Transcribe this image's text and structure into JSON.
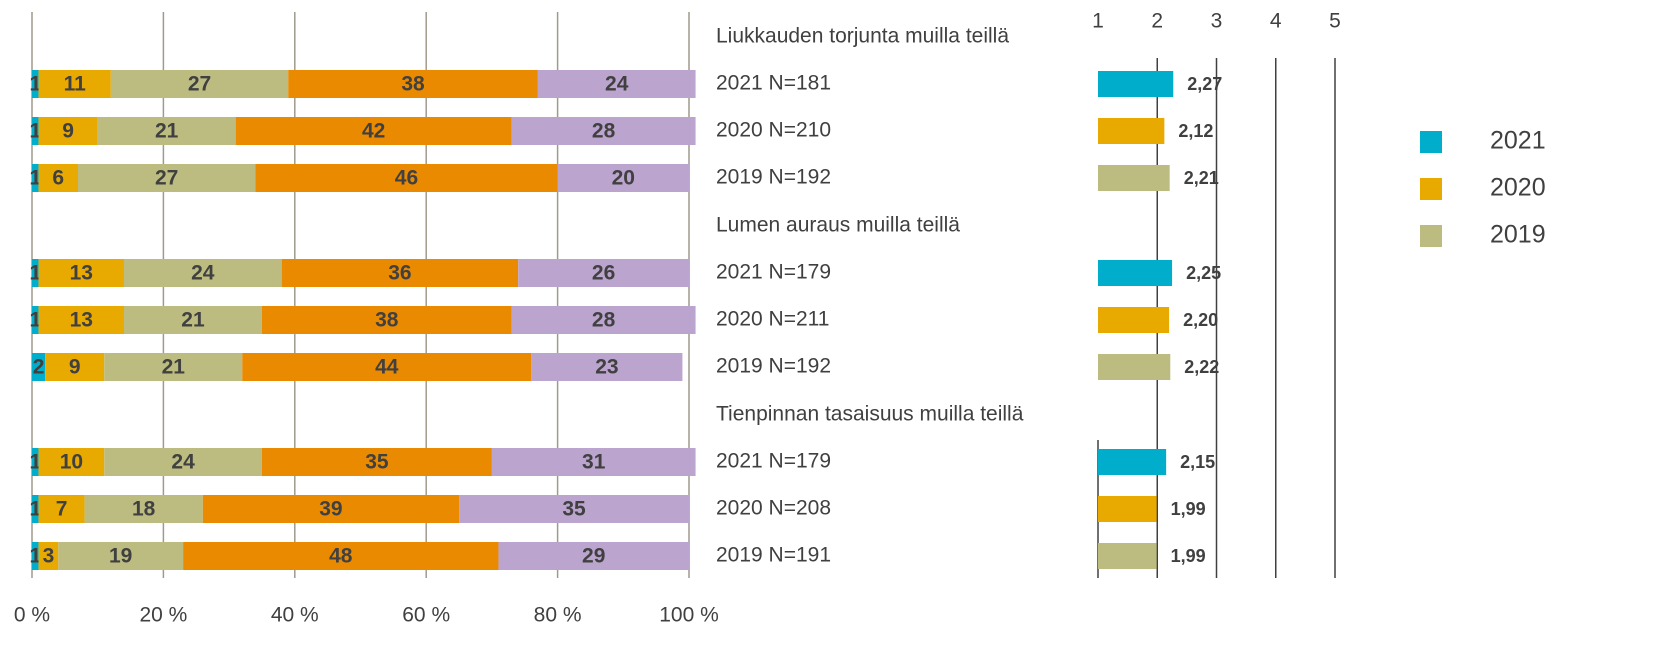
{
  "chart_data": [
    {
      "type": "stacked_barh",
      "group_titles": [
        "Liukkauden torjunta muilla teillä",
        "Lumen auraus muilla teillä",
        "Tienpinnan tasaisuus muilla teillä"
      ],
      "categories": [
        "2021 N=181",
        "2020 N=210",
        "2019 N=192",
        "2021 N=179",
        "2020 N=211",
        "2019 N=192",
        "2021 N=179",
        "2020 N=208",
        "2019 N=191"
      ],
      "series": [
        {
          "color": "#00AECB",
          "values": [
            1,
            1,
            1,
            1,
            1,
            2,
            1,
            1,
            1
          ]
        },
        {
          "color": "#E8A900",
          "values": [
            11,
            9,
            6,
            13,
            13,
            9,
            10,
            7,
            3
          ]
        },
        {
          "color": "#BDBC80",
          "values": [
            27,
            21,
            27,
            24,
            21,
            21,
            24,
            18,
            19
          ]
        },
        {
          "color": "#EA8A00",
          "values": [
            38,
            42,
            46,
            36,
            38,
            44,
            35,
            39,
            48
          ]
        },
        {
          "color": "#BBA4CE",
          "values": [
            24,
            28,
            20,
            26,
            28,
            23,
            31,
            35,
            29
          ]
        }
      ],
      "xlim": [
        0,
        100
      ],
      "xticks": [
        {
          "value": 0,
          "label": "0 %"
        },
        {
          "value": 20,
          "label": "20 %"
        },
        {
          "value": 40,
          "label": "40 %"
        },
        {
          "value": 60,
          "label": "60 %"
        },
        {
          "value": 80,
          "label": "80 %"
        },
        {
          "value": 100,
          "label": "100 %"
        }
      ],
      "grid": true
    },
    {
      "type": "barh",
      "series": [
        {
          "name": "2021",
          "color": "#00AECB",
          "values": [
            2.27,
            2.25,
            2.15
          ],
          "value_labels": [
            "2,27",
            "2,25",
            "2,15"
          ]
        },
        {
          "name": "2020",
          "color": "#E8A900",
          "values": [
            2.12,
            2.2,
            1.99
          ],
          "value_labels": [
            "2,12",
            "2,20",
            "1,99"
          ]
        },
        {
          "name": "2019",
          "color": "#BDBC80",
          "values": [
            2.21,
            2.22,
            1.99
          ],
          "value_labels": [
            "2,21",
            "2,22",
            "1,99"
          ]
        }
      ],
      "xlim": [
        1,
        5
      ],
      "xticks": [
        1,
        2,
        3,
        4,
        5
      ],
      "grid": true,
      "legend": "right"
    }
  ]
}
